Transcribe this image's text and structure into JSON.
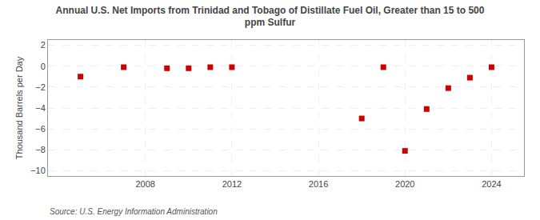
{
  "chart_data": {
    "type": "scatter",
    "title": "Annual U.S. Net Imports from Trinidad and Tobago of Distillate Fuel Oil, Greater than 15 to 500\nppm Sulfur",
    "ylabel": "Thousand Barrels per Day",
    "annotations": [
      {
        "text": "Source: U.S. Energy Information Administration"
      }
    ],
    "x": [
      2005,
      2007,
      2009,
      2010,
      2011,
      2012,
      2018,
      2019,
      2020,
      2021,
      2022,
      2023,
      2024
    ],
    "values": [
      -1.0,
      -0.1,
      -0.2,
      -0.2,
      -0.1,
      -0.1,
      -5.0,
      -0.1,
      -8.1,
      -4.1,
      -2.1,
      -1.1,
      -0.1
    ],
    "color": "#cc0000",
    "marker": "square",
    "xlim": [
      2003.5,
      2025.5
    ],
    "xticks": [
      2008,
      2012,
      2016,
      2020,
      2024
    ],
    "ylim": [
      -10.5,
      2.5
    ],
    "yticks": [
      -10,
      -8,
      -6,
      -4,
      -2,
      0,
      2
    ],
    "grid": true
  }
}
